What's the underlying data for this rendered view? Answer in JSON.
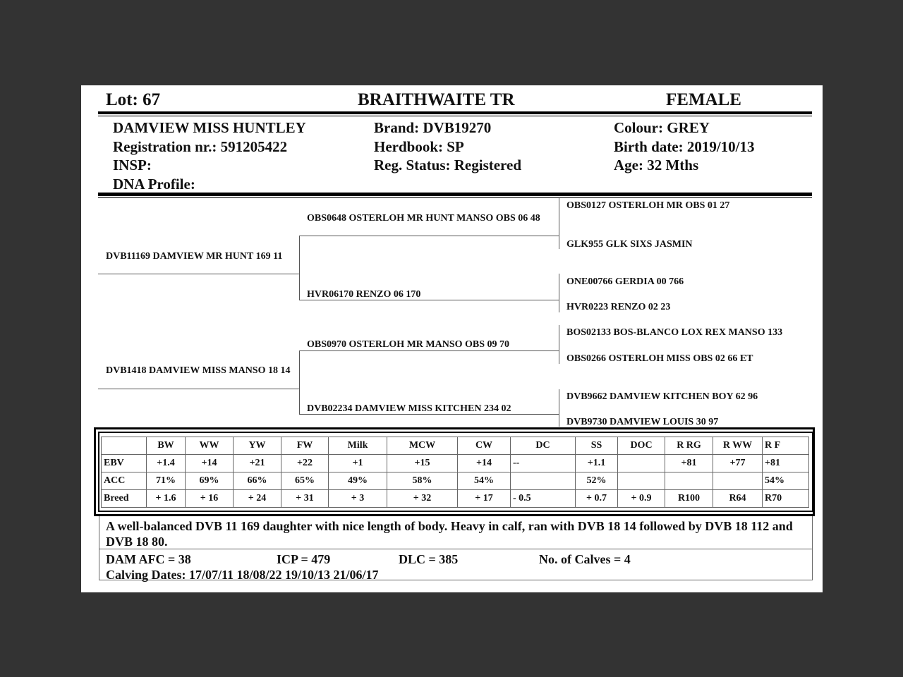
{
  "header": {
    "lot": "Lot:  67",
    "breeder": "BRAITHWAITE TR",
    "sex": "FEMALE"
  },
  "animal": {
    "name": "DAMVIEW MISS HUNTLEY",
    "registration": "Registration nr.: 591205422",
    "insp": "INSP:",
    "dna": "DNA Profile:",
    "brand": "Brand:  DVB19270",
    "herdbook": "Herdbook: SP",
    "reg_status": "Reg. Status: Registered",
    "colour": "Colour:  GREY",
    "birth_date": "Birth date:  2019/10/13",
    "age": "Age: 32 Mths"
  },
  "pedigree": {
    "sire": "DVB11169 DAMVIEW MR HUNT 169 11",
    "dam": "DVB1418 DAMVIEW MISS MANSO 18 14",
    "sire_sire": "OBS0648 OSTERLOH MR HUNT MANSO OBS 06 48",
    "sire_dam": "HVR06170 RENZO 06 170",
    "dam_sire": "OBS0970 OSTERLOH MR MANSO OBS 09 70",
    "dam_dam": "DVB02234 DAMVIEW MISS KITCHEN 234 02",
    "gen3": [
      "OBS0127 OSTERLOH MR OBS 01 27",
      "GLK955 GLK SIXS JASMIN",
      "ONE00766 GERDIA 00 766",
      "HVR0223 RENZO 02 23",
      "BOS02133 BOS-BLANCO LOX REX MANSO 133",
      "OBS0266 OSTERLOH MISS OBS 02 66 ET",
      "DVB9662 DAMVIEW KITCHEN BOY 62 96",
      "DVB9730 DAMVIEW LOUIS 30 97"
    ]
  },
  "ebv_table": {
    "headers": [
      "",
      "BW",
      "WW",
      "YW",
      "FW",
      "Milk",
      "MCW",
      "CW",
      "DC",
      "SS",
      "DOC",
      "R RG",
      "R WW",
      "R F"
    ],
    "rows": [
      [
        "EBV",
        "+1.4",
        "+14",
        "+21",
        "+22",
        "+1",
        "+15",
        "+14",
        "--",
        "+1.1",
        "",
        "+81",
        "+77",
        "+81"
      ],
      [
        "ACC",
        "71%",
        "69%",
        "66%",
        "65%",
        "49%",
        "58%",
        "54%",
        "",
        "52%",
        "",
        "",
        "",
        "54%"
      ],
      [
        "Breed",
        "+ 1.6",
        "+ 16",
        "+ 24",
        "+ 31",
        "+ 3",
        "+ 32",
        "+ 17",
        "- 0.5",
        "+ 0.7",
        "+ 0.9",
        "R100",
        "R64",
        "R70"
      ]
    ]
  },
  "comments": {
    "text": "A well-balanced DVB 11 169 daughter with nice length of body. Heavy in calf, ran with DVB 18 14 followed by DVB 18 112 and DVB 18 80.",
    "dam_afc": "DAM AFC = 38",
    "icp": "ICP = 479",
    "dlc": "DLC = 385",
    "calves": "No. of Calves = 4",
    "calving_dates": "Calving Dates: 17/07/11  18/08/22  19/10/13  21/06/17"
  }
}
